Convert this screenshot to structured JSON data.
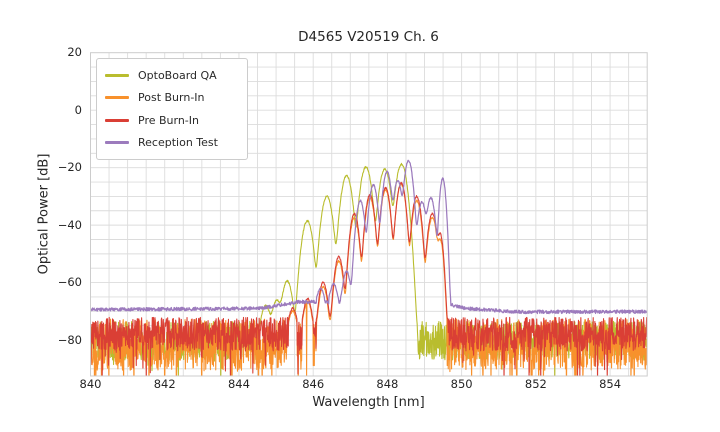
{
  "chart_data": {
    "type": "line",
    "title": "D4565 V20519 Ch. 6",
    "xlabel": "Wavelength [nm]",
    "ylabel": "Optical Power [dB]",
    "xlim": [
      840,
      855
    ],
    "ylim": [
      -92.5,
      20
    ],
    "xticks": {
      "values": [
        840,
        842,
        844,
        846,
        848,
        850,
        852,
        854
      ],
      "labels": [
        "840",
        "842",
        "844",
        "846",
        "848",
        "850",
        "852",
        "854"
      ]
    },
    "yticks": {
      "values": [
        20,
        0,
        -20,
        -40,
        -60,
        -80
      ],
      "labels": [
        "20",
        "0",
        "−20",
        "−40",
        "−60",
        "−80"
      ]
    },
    "grid": {
      "x_step": 0.5,
      "y_step": 5,
      "color": "#dcdcdc",
      "border_color": "#cccccc"
    },
    "legend": {
      "position": "upper left"
    },
    "sample_step_nm": 0.009,
    "series": [
      {
        "name": "OptoBoard QA",
        "color": "#b9bd2e",
        "line_width": 1.1,
        "mode_width_nm": 0.115,
        "floor": [
          [
            840,
            -78
          ],
          [
            855,
            -78
          ]
        ],
        "noise": {
          "seed": 11,
          "up": 4.5,
          "down": 9,
          "deep_p": 0.012,
          "deep_db": 10,
          "threshold": 2.5
        },
        "modes": [
          [
            844.72,
            -68.5
          ],
          [
            845.02,
            -66.5
          ],
          [
            845.3,
            -59.5
          ],
          [
            845.84,
            -38.5
          ],
          [
            846.37,
            -30
          ],
          [
            846.9,
            -22.8
          ],
          [
            847.42,
            -19.8
          ],
          [
            847.93,
            -20.5
          ],
          [
            848.38,
            -18.8
          ]
        ],
        "dropouts": []
      },
      {
        "name": "Post Burn-In",
        "color": "#f8912c",
        "line_width": 1.1,
        "mode_width_nm": 0.095,
        "floor": [
          [
            840,
            -76.5
          ],
          [
            855,
            -76.5
          ]
        ],
        "noise": {
          "seed": 22,
          "up": 3.8,
          "down": 14,
          "deep_p": 0.06,
          "deep_db": 8,
          "threshold": 2.5
        },
        "modes": [
          [
            845.45,
            -71
          ],
          [
            845.85,
            -67
          ],
          [
            846.27,
            -61.5
          ],
          [
            846.69,
            -52.5
          ],
          [
            847.11,
            -37.5
          ],
          [
            847.53,
            -30.5
          ],
          [
            847.95,
            -27.8
          ],
          [
            848.37,
            -25.8
          ],
          [
            848.79,
            -31.5
          ],
          [
            849.21,
            -37.5
          ],
          [
            849.42,
            -45,
            0.07
          ]
        ],
        "dropouts": [
          [
            845.82,
            -92.5
          ]
        ]
      },
      {
        "name": "Pre Burn-In",
        "color": "#da3f35",
        "line_width": 1.1,
        "mode_width_nm": 0.095,
        "floor": [
          [
            840,
            -75.3
          ],
          [
            855,
            -75.3
          ]
        ],
        "noise": {
          "seed": 33,
          "up": 3.2,
          "down": 8.5,
          "deep_p": 0.035,
          "deep_db": 12,
          "threshold": 2.5
        },
        "modes": [
          [
            845.45,
            -70
          ],
          [
            845.85,
            -66
          ],
          [
            846.27,
            -60
          ],
          [
            846.69,
            -51
          ],
          [
            847.11,
            -36
          ],
          [
            847.53,
            -29.5
          ],
          [
            847.95,
            -27
          ],
          [
            848.37,
            -25.3
          ],
          [
            848.79,
            -30
          ],
          [
            849.21,
            -36
          ],
          [
            849.42,
            -43,
            0.07
          ]
        ],
        "dropouts": []
      },
      {
        "name": "Reception Test",
        "color": "#9c7bbd",
        "line_width": 1.25,
        "mode_width_nm": 0.09,
        "floor": [
          [
            840,
            -69.3
          ],
          [
            844.6,
            -68.9
          ],
          [
            845.6,
            -66.6
          ],
          [
            849.6,
            -67.2
          ],
          [
            850.1,
            -68.9
          ],
          [
            851.5,
            -70.1
          ],
          [
            855,
            -70.0
          ]
        ],
        "noise": {
          "seed": 44,
          "up": 0.5,
          "down": 0.7,
          "deep_p": 0,
          "deep_db": 0,
          "threshold": 1.6
        },
        "modes": [
          [
            846.2,
            -64
          ],
          [
            846.55,
            -61.5
          ],
          [
            846.9,
            -56.5
          ],
          [
            847.27,
            -31.5
          ],
          [
            847.62,
            -26
          ],
          [
            847.99,
            -21.4
          ],
          [
            848.28,
            -24.5
          ],
          [
            848.57,
            -17.6
          ],
          [
            848.93,
            -32
          ],
          [
            849.17,
            -30.5
          ],
          [
            849.49,
            -23.8,
            0.065
          ]
        ],
        "dropouts": []
      }
    ]
  }
}
